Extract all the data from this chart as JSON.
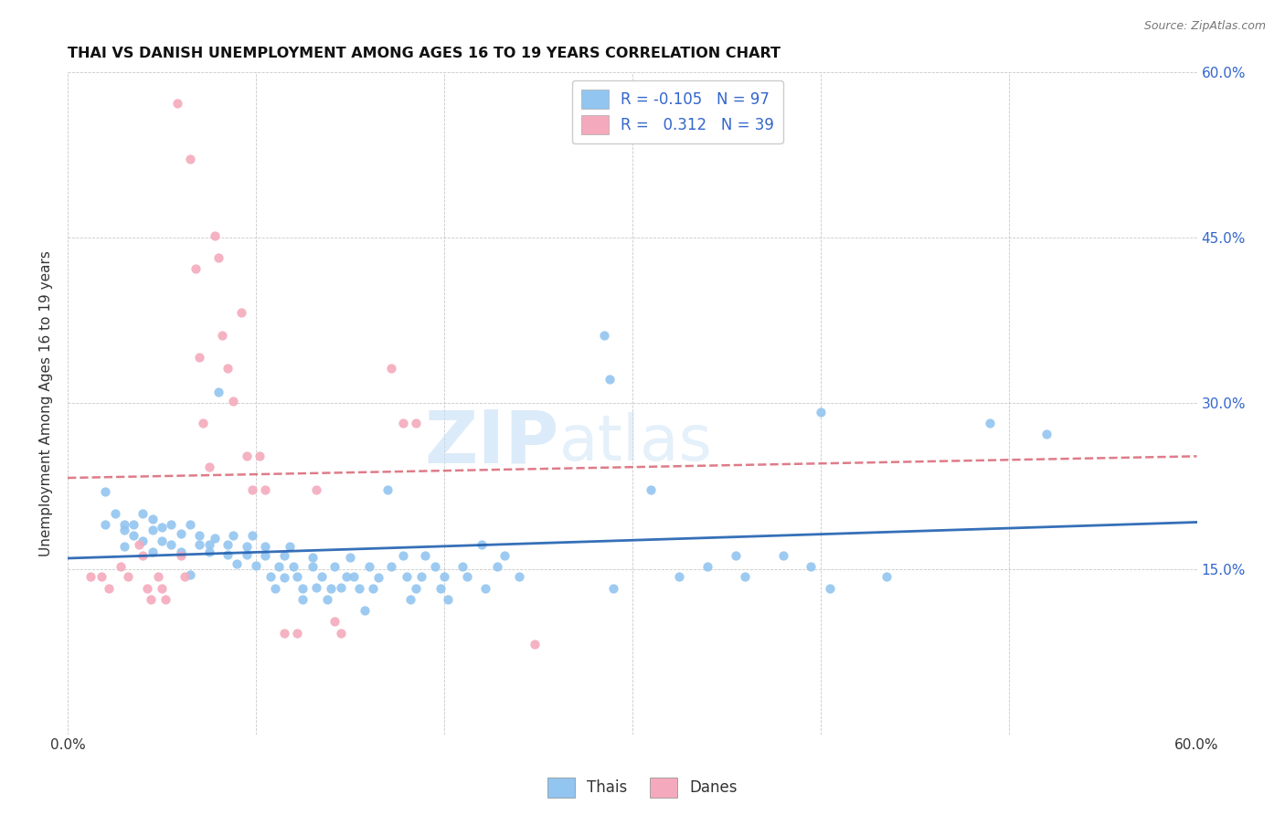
{
  "title": "THAI VS DANISH UNEMPLOYMENT AMONG AGES 16 TO 19 YEARS CORRELATION CHART",
  "source": "Source: ZipAtlas.com",
  "ylabel": "Unemployment Among Ages 16 to 19 years",
  "xlim": [
    0.0,
    0.6
  ],
  "ylim": [
    0.0,
    0.6
  ],
  "thai_color": "#92C5F0",
  "dane_color": "#F4AABC",
  "thai_R": -0.105,
  "thai_N": 97,
  "dane_R": 0.312,
  "dane_N": 39,
  "watermark_zip": "ZIP",
  "watermark_atlas": "atlas",
  "thai_line_color": "#2060B0",
  "dane_line_color": "#D45060",
  "legend_text_color": "#3366CC",
  "thai_scatter": [
    [
      0.02,
      0.22
    ],
    [
      0.02,
      0.19
    ],
    [
      0.025,
      0.2
    ],
    [
      0.03,
      0.185
    ],
    [
      0.03,
      0.19
    ],
    [
      0.03,
      0.17
    ],
    [
      0.035,
      0.18
    ],
    [
      0.035,
      0.19
    ],
    [
      0.04,
      0.2
    ],
    [
      0.04,
      0.175
    ],
    [
      0.045,
      0.185
    ],
    [
      0.045,
      0.195
    ],
    [
      0.045,
      0.165
    ],
    [
      0.05,
      0.175
    ],
    [
      0.05,
      0.188
    ],
    [
      0.055,
      0.19
    ],
    [
      0.055,
      0.172
    ],
    [
      0.06,
      0.165
    ],
    [
      0.06,
      0.182
    ],
    [
      0.065,
      0.19
    ],
    [
      0.065,
      0.145
    ],
    [
      0.07,
      0.172
    ],
    [
      0.07,
      0.18
    ],
    [
      0.075,
      0.165
    ],
    [
      0.075,
      0.172
    ],
    [
      0.078,
      0.178
    ],
    [
      0.08,
      0.31
    ],
    [
      0.085,
      0.172
    ],
    [
      0.085,
      0.163
    ],
    [
      0.088,
      0.18
    ],
    [
      0.09,
      0.155
    ],
    [
      0.095,
      0.17
    ],
    [
      0.095,
      0.163
    ],
    [
      0.098,
      0.18
    ],
    [
      0.1,
      0.153
    ],
    [
      0.105,
      0.17
    ],
    [
      0.105,
      0.162
    ],
    [
      0.108,
      0.143
    ],
    [
      0.11,
      0.132
    ],
    [
      0.112,
      0.152
    ],
    [
      0.115,
      0.162
    ],
    [
      0.115,
      0.142
    ],
    [
      0.118,
      0.17
    ],
    [
      0.12,
      0.152
    ],
    [
      0.122,
      0.143
    ],
    [
      0.125,
      0.122
    ],
    [
      0.125,
      0.132
    ],
    [
      0.13,
      0.16
    ],
    [
      0.13,
      0.152
    ],
    [
      0.132,
      0.133
    ],
    [
      0.135,
      0.143
    ],
    [
      0.138,
      0.122
    ],
    [
      0.14,
      0.132
    ],
    [
      0.142,
      0.152
    ],
    [
      0.145,
      0.133
    ],
    [
      0.148,
      0.143
    ],
    [
      0.15,
      0.16
    ],
    [
      0.152,
      0.143
    ],
    [
      0.155,
      0.132
    ],
    [
      0.158,
      0.112
    ],
    [
      0.16,
      0.152
    ],
    [
      0.162,
      0.132
    ],
    [
      0.165,
      0.142
    ],
    [
      0.17,
      0.222
    ],
    [
      0.172,
      0.152
    ],
    [
      0.178,
      0.162
    ],
    [
      0.18,
      0.143
    ],
    [
      0.182,
      0.122
    ],
    [
      0.185,
      0.132
    ],
    [
      0.188,
      0.143
    ],
    [
      0.19,
      0.162
    ],
    [
      0.195,
      0.152
    ],
    [
      0.198,
      0.132
    ],
    [
      0.2,
      0.143
    ],
    [
      0.202,
      0.122
    ],
    [
      0.21,
      0.152
    ],
    [
      0.212,
      0.143
    ],
    [
      0.22,
      0.172
    ],
    [
      0.222,
      0.132
    ],
    [
      0.228,
      0.152
    ],
    [
      0.232,
      0.162
    ],
    [
      0.24,
      0.143
    ],
    [
      0.285,
      0.362
    ],
    [
      0.288,
      0.322
    ],
    [
      0.29,
      0.132
    ],
    [
      0.31,
      0.222
    ],
    [
      0.325,
      0.143
    ],
    [
      0.34,
      0.152
    ],
    [
      0.355,
      0.162
    ],
    [
      0.36,
      0.143
    ],
    [
      0.38,
      0.162
    ],
    [
      0.395,
      0.152
    ],
    [
      0.4,
      0.292
    ],
    [
      0.405,
      0.132
    ],
    [
      0.435,
      0.143
    ],
    [
      0.49,
      0.282
    ],
    [
      0.52,
      0.272
    ]
  ],
  "dane_scatter": [
    [
      0.012,
      0.143
    ],
    [
      0.018,
      0.143
    ],
    [
      0.022,
      0.132
    ],
    [
      0.028,
      0.152
    ],
    [
      0.032,
      0.143
    ],
    [
      0.038,
      0.172
    ],
    [
      0.04,
      0.162
    ],
    [
      0.042,
      0.132
    ],
    [
      0.044,
      0.122
    ],
    [
      0.048,
      0.143
    ],
    [
      0.05,
      0.132
    ],
    [
      0.052,
      0.122
    ],
    [
      0.058,
      0.572
    ],
    [
      0.06,
      0.162
    ],
    [
      0.062,
      0.143
    ],
    [
      0.065,
      0.522
    ],
    [
      0.068,
      0.422
    ],
    [
      0.07,
      0.342
    ],
    [
      0.072,
      0.282
    ],
    [
      0.075,
      0.242
    ],
    [
      0.078,
      0.452
    ],
    [
      0.08,
      0.432
    ],
    [
      0.082,
      0.362
    ],
    [
      0.085,
      0.332
    ],
    [
      0.088,
      0.302
    ],
    [
      0.092,
      0.382
    ],
    [
      0.095,
      0.252
    ],
    [
      0.098,
      0.222
    ],
    [
      0.102,
      0.252
    ],
    [
      0.105,
      0.222
    ],
    [
      0.115,
      0.092
    ],
    [
      0.122,
      0.092
    ],
    [
      0.132,
      0.222
    ],
    [
      0.142,
      0.102
    ],
    [
      0.145,
      0.092
    ],
    [
      0.172,
      0.332
    ],
    [
      0.178,
      0.282
    ],
    [
      0.185,
      0.282
    ],
    [
      0.248,
      0.082
    ]
  ]
}
